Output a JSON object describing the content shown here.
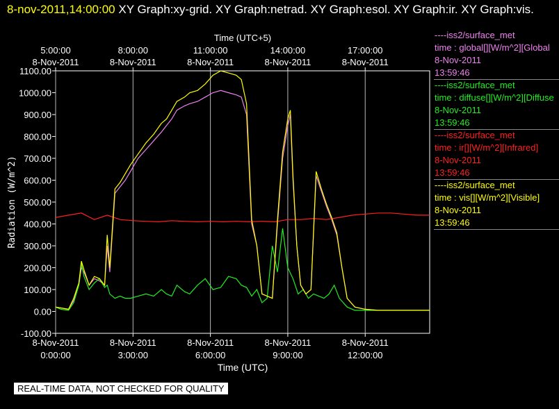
{
  "header": {
    "timestamp": "8-nov-2011,14:00:00",
    "rest": "  XY Graph:xy-grid.  XY Graph:netrad.  XY Graph:esol.  XY Graph:ir.  XY Graph:vis."
  },
  "legend": [
    {
      "source": "----iss2/surface_met",
      "field": "time : global[][W/m^2][Global",
      "date": "8-Nov-2011",
      "time": "13:59:46",
      "color": "#ee82ee"
    },
    {
      "source": "----iss2/surface_met",
      "field": "time : diffuse[][W/m^2][Diffuse",
      "date": "8-Nov-2011",
      "time": "13:59:46",
      "color": "#22ee22"
    },
    {
      "source": "----iss2/surface_met",
      "field": "time : ir[][W/m^2][Infrared]",
      "date": "8-Nov-2011",
      "time": "13:59:46",
      "color": "#ff2020"
    },
    {
      "source": "----iss2/surface_met",
      "field": "time : vis[][W/m^2][Visible]",
      "date": "8-Nov-2011",
      "time": "13:59:46",
      "color": "#ffff00"
    }
  ],
  "footer": "REAL-TIME DATA, NOT CHECKED FOR QUALITY",
  "chart_data": {
    "type": "line",
    "top_axis_label": "Time (UTC+5)",
    "xlabel": "Time (UTC)",
    "ylabel": "Radiation (W/m^2)",
    "xlim": [
      0,
      14.5
    ],
    "ylim": [
      -100,
      1100
    ],
    "yticks": [
      -100,
      0,
      100,
      200,
      300,
      400,
      500,
      600,
      700,
      800,
      900,
      1000,
      1100
    ],
    "ytick_labels": [
      "-100.00",
      "0.00",
      "100.00",
      "200.00",
      "300.00",
      "400.00",
      "500.00",
      "600.00",
      "700.00",
      "800.00",
      "900.00",
      "1000.00",
      "1100.00"
    ],
    "bottom_ticks": [
      {
        "x": 0,
        "date": "8-Nov-2011",
        "time": "0:00:00"
      },
      {
        "x": 3,
        "date": "8-Nov-2011",
        "time": "3:00:00"
      },
      {
        "x": 6,
        "date": "8-Nov-2011",
        "time": "6:00:00"
      },
      {
        "x": 9,
        "date": "8-Nov-2011",
        "time": "9:00:00"
      },
      {
        "x": 12,
        "date": "8-Nov-2011",
        "time": "12:00:00"
      }
    ],
    "top_ticks": [
      {
        "x": 0,
        "date": "8-Nov-2011",
        "time": "5:00:00"
      },
      {
        "x": 3,
        "date": "8-Nov-2011",
        "time": "8:00:00"
      },
      {
        "x": 6,
        "date": "8-Nov-2011",
        "time": "11:00:00"
      },
      {
        "x": 9,
        "date": "8-Nov-2011",
        "time": "14:00:00"
      },
      {
        "x": 12,
        "date": "8-Nov-2011",
        "time": "17:00:00"
      }
    ],
    "grid": true,
    "series": [
      {
        "name": "global",
        "color": "#ee82ee",
        "x": [
          0,
          0.5,
          0.7,
          0.9,
          1.0,
          1.1,
          1.3,
          1.5,
          1.7,
          1.9,
          2.0,
          2.1,
          2.3,
          2.5,
          2.7,
          2.9,
          3.2,
          3.5,
          3.8,
          4.1,
          4.3,
          4.5,
          4.7,
          5.0,
          5.2,
          5.5,
          5.8,
          6.1,
          6.4,
          6.7,
          7.0,
          7.2,
          7.4,
          7.6,
          7.8,
          8.0,
          8.2,
          8.4,
          8.6,
          8.8,
          9.0,
          9.1,
          9.2,
          9.35,
          9.5,
          9.7,
          9.9,
          10.1,
          10.3,
          10.5,
          10.7,
          10.9,
          11.1,
          11.3,
          11.6,
          12.0,
          12.5,
          13.0,
          13.5,
          14.0,
          14.5
        ],
        "y": [
          20,
          10,
          50,
          120,
          200,
          180,
          120,
          150,
          140,
          120,
          300,
          180,
          540,
          570,
          600,
          640,
          700,
          740,
          780,
          820,
          850,
          880,
          920,
          940,
          950,
          960,
          980,
          1000,
          1010,
          1000,
          990,
          980,
          900,
          400,
          300,
          80,
          70,
          60,
          400,
          700,
          850,
          900,
          600,
          300,
          120,
          80,
          100,
          620,
          550,
          480,
          420,
          350,
          200,
          60,
          20,
          10,
          5,
          5,
          5,
          5,
          5
        ]
      },
      {
        "name": "diffuse",
        "color": "#22ee22",
        "x": [
          0,
          0.2,
          0.5,
          0.7,
          0.9,
          1.0,
          1.1,
          1.3,
          1.5,
          1.7,
          1.9,
          2.0,
          2.1,
          2.3,
          2.5,
          2.7,
          2.9,
          3.2,
          3.5,
          3.8,
          4.1,
          4.3,
          4.5,
          4.7,
          5.0,
          5.2,
          5.5,
          5.8,
          6.1,
          6.4,
          6.7,
          7.0,
          7.2,
          7.4,
          7.6,
          7.8,
          8.0,
          8.2,
          8.4,
          8.6,
          8.8,
          9.0,
          9.2,
          9.4,
          9.6,
          9.8,
          10.0,
          10.2,
          10.4,
          10.6,
          10.8,
          11.0,
          11.3,
          11.6,
          12.0,
          12.5,
          13.0,
          13.5,
          14.0,
          14.5
        ],
        "y": [
          20,
          10,
          5,
          40,
          120,
          220,
          160,
          100,
          130,
          150,
          110,
          120,
          80,
          60,
          70,
          60,
          60,
          70,
          80,
          70,
          100,
          80,
          70,
          120,
          90,
          80,
          120,
          150,
          100,
          110,
          160,
          150,
          120,
          110,
          70,
          100,
          40,
          60,
          300,
          180,
          380,
          200,
          150,
          80,
          100,
          60,
          80,
          70,
          60,
          80,
          120,
          60,
          20,
          5,
          5,
          5,
          5,
          5,
          5,
          5
        ]
      },
      {
        "name": "ir",
        "color": "#ff2020",
        "x": [
          0,
          0.5,
          1.0,
          1.5,
          2.0,
          2.5,
          3.0,
          3.5,
          4.0,
          4.5,
          5.0,
          5.5,
          6.0,
          6.5,
          7.0,
          7.5,
          8.0,
          8.5,
          9.0,
          9.5,
          10.0,
          10.5,
          11.0,
          11.5,
          12.0,
          12.5,
          13.0,
          13.5,
          14.0,
          14.5
        ],
        "y": [
          430,
          440,
          450,
          420,
          440,
          420,
          415,
          412,
          410,
          415,
          412,
          410,
          412,
          410,
          412,
          410,
          412,
          410,
          420,
          420,
          425,
          420,
          430,
          440,
          445,
          450,
          450,
          445,
          440,
          440
        ]
      },
      {
        "name": "vis",
        "color": "#ffff00",
        "x": [
          0,
          0.5,
          0.7,
          0.9,
          1.0,
          1.1,
          1.3,
          1.5,
          1.7,
          1.9,
          2.0,
          2.1,
          2.3,
          2.5,
          2.7,
          2.9,
          3.2,
          3.5,
          3.8,
          4.1,
          4.3,
          4.5,
          4.7,
          5.0,
          5.2,
          5.5,
          5.8,
          6.1,
          6.4,
          6.7,
          7.0,
          7.2,
          7.4,
          7.6,
          7.8,
          8.0,
          8.2,
          8.4,
          8.6,
          8.8,
          9.0,
          9.1,
          9.2,
          9.35,
          9.5,
          9.7,
          9.9,
          10.1,
          10.3,
          10.5,
          10.7,
          10.9,
          11.1,
          11.3,
          11.6,
          12.0,
          12.5,
          13.0,
          13.5,
          14.0,
          14.5
        ],
        "y": [
          20,
          10,
          60,
          130,
          230,
          190,
          120,
          160,
          150,
          120,
          350,
          200,
          560,
          590,
          630,
          670,
          720,
          770,
          810,
          860,
          880,
          920,
          960,
          980,
          1000,
          1010,
          1040,
          1080,
          1100,
          1090,
          1080,
          1060,
          950,
          420,
          300,
          80,
          70,
          60,
          420,
          730,
          880,
          920,
          620,
          300,
          120,
          80,
          100,
          640,
          560,
          490,
          430,
          360,
          200,
          60,
          20,
          10,
          5,
          5,
          5,
          5,
          5
        ]
      }
    ]
  }
}
